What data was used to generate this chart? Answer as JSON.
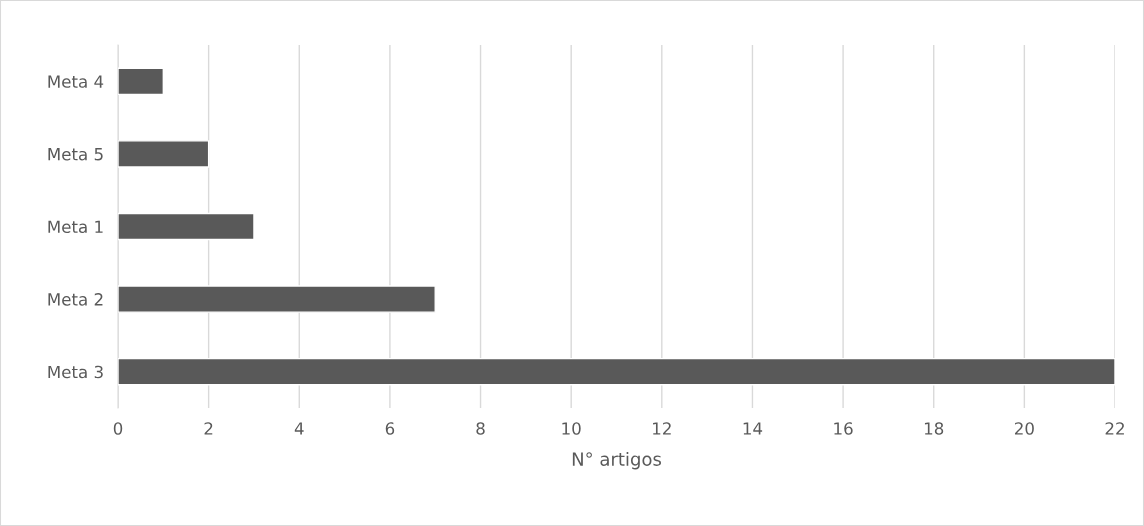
{
  "chart_data": {
    "type": "bar",
    "orientation": "horizontal",
    "xlabel": "N° artigos",
    "categories": [
      "Meta 4",
      "Meta 5",
      "Meta 1",
      "Meta 2",
      "Meta 3"
    ],
    "values": [
      1,
      2,
      3,
      7,
      22
    ],
    "color": "#595959",
    "xlim": [
      0,
      22
    ],
    "xticks": [
      0,
      2,
      4,
      6,
      8,
      10,
      12,
      14,
      16,
      18,
      20,
      22
    ],
    "grid": "x",
    "legend": false
  }
}
